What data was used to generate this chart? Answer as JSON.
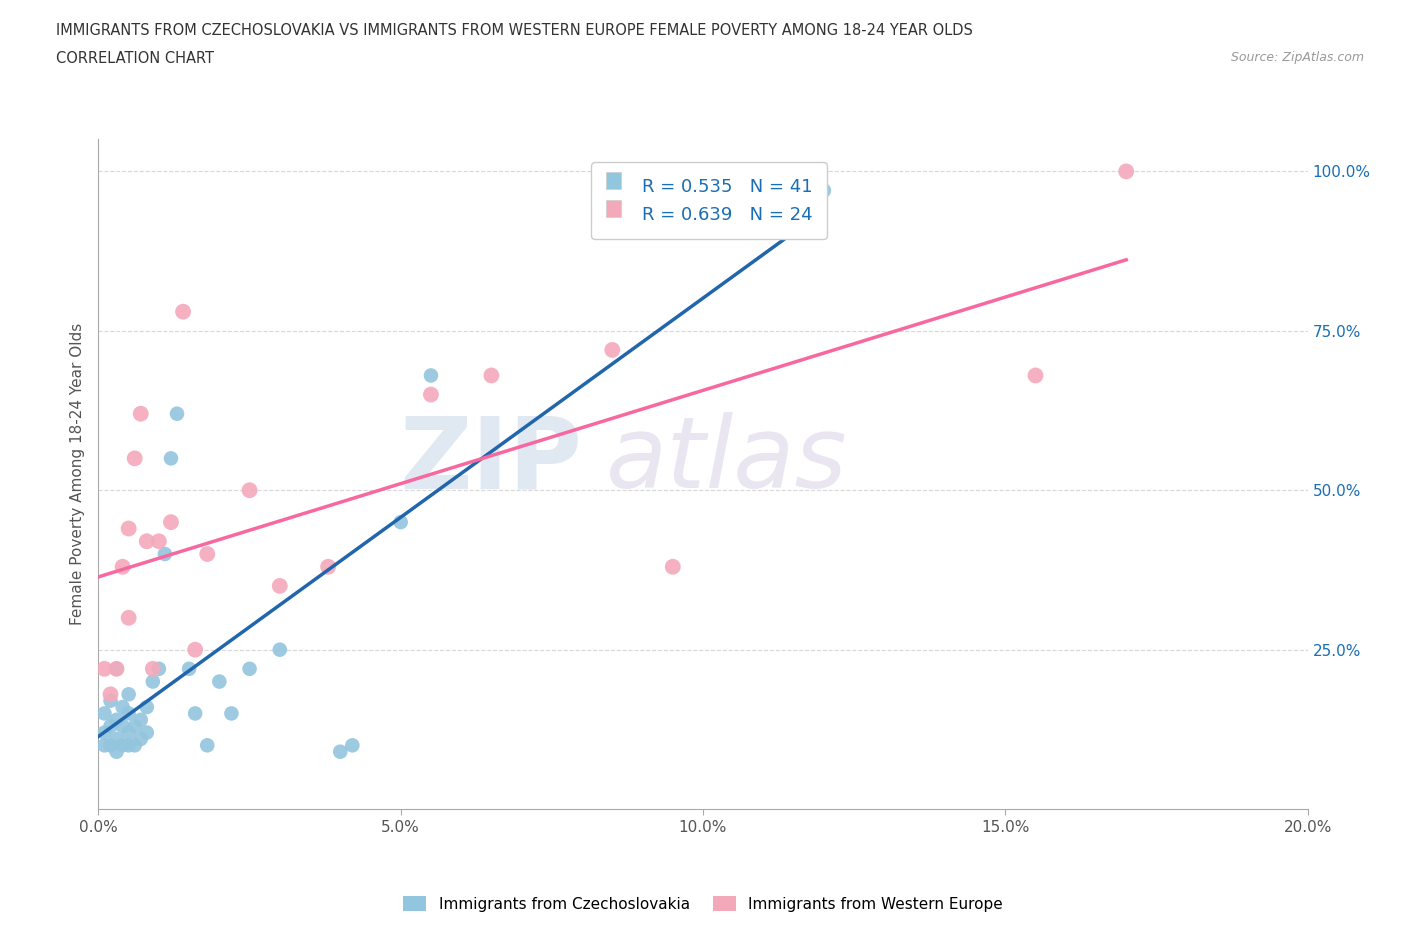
{
  "title_line1": "IMMIGRANTS FROM CZECHOSLOVAKIA VS IMMIGRANTS FROM WESTERN EUROPE FEMALE POVERTY AMONG 18-24 YEAR OLDS",
  "title_line2": "CORRELATION CHART",
  "source": "Source: ZipAtlas.com",
  "ylabel": "Female Poverty Among 18-24 Year Olds",
  "xlim": [
    0.0,
    0.2
  ],
  "ylim": [
    0.0,
    1.05
  ],
  "right_yticks": [
    0.25,
    0.5,
    0.75,
    1.0
  ],
  "right_yticklabels": [
    "25.0%",
    "50.0%",
    "75.0%",
    "100.0%"
  ],
  "xticks": [
    0.0,
    0.05,
    0.1,
    0.15,
    0.2
  ],
  "xticklabels": [
    "0.0%",
    "5.0%",
    "10.0%",
    "15.0%",
    "20.0%"
  ],
  "legend1_label": "Immigrants from Czechoslovakia",
  "legend2_label": "Immigrants from Western Europe",
  "r1": 0.535,
  "n1": 41,
  "r2": 0.639,
  "n2": 24,
  "color_blue": "#92c5de",
  "color_pink": "#f4a9bb",
  "color_blue_line": "#2166ac",
  "color_pink_line": "#f768a1",
  "color_blue_dark": "#1a6eb5",
  "blue_scatter_x": [
    0.001,
    0.001,
    0.001,
    0.002,
    0.002,
    0.002,
    0.003,
    0.003,
    0.003,
    0.003,
    0.004,
    0.004,
    0.004,
    0.005,
    0.005,
    0.005,
    0.005,
    0.006,
    0.006,
    0.007,
    0.007,
    0.008,
    0.008,
    0.009,
    0.01,
    0.011,
    0.012,
    0.013,
    0.015,
    0.016,
    0.018,
    0.02,
    0.022,
    0.025,
    0.03,
    0.04,
    0.042,
    0.05,
    0.055,
    0.11,
    0.12
  ],
  "blue_scatter_y": [
    0.1,
    0.12,
    0.15,
    0.1,
    0.13,
    0.17,
    0.09,
    0.11,
    0.14,
    0.22,
    0.1,
    0.13,
    0.16,
    0.1,
    0.12,
    0.15,
    0.18,
    0.1,
    0.13,
    0.11,
    0.14,
    0.12,
    0.16,
    0.2,
    0.22,
    0.4,
    0.55,
    0.62,
    0.22,
    0.15,
    0.1,
    0.2,
    0.15,
    0.22,
    0.25,
    0.09,
    0.1,
    0.45,
    0.68,
    0.97,
    0.97
  ],
  "pink_scatter_x": [
    0.001,
    0.002,
    0.003,
    0.004,
    0.005,
    0.005,
    0.006,
    0.007,
    0.008,
    0.009,
    0.01,
    0.012,
    0.014,
    0.016,
    0.018,
    0.025,
    0.03,
    0.038,
    0.055,
    0.065,
    0.085,
    0.095,
    0.155,
    0.17
  ],
  "pink_scatter_y": [
    0.22,
    0.18,
    0.22,
    0.38,
    0.3,
    0.44,
    0.55,
    0.62,
    0.42,
    0.22,
    0.42,
    0.45,
    0.78,
    0.25,
    0.4,
    0.5,
    0.35,
    0.38,
    0.65,
    0.68,
    0.72,
    0.38,
    0.68,
    1.0
  ],
  "watermark_zip": "ZIP",
  "watermark_atlas": "atlas",
  "background_color": "#ffffff",
  "grid_color": "#d8d8d8"
}
